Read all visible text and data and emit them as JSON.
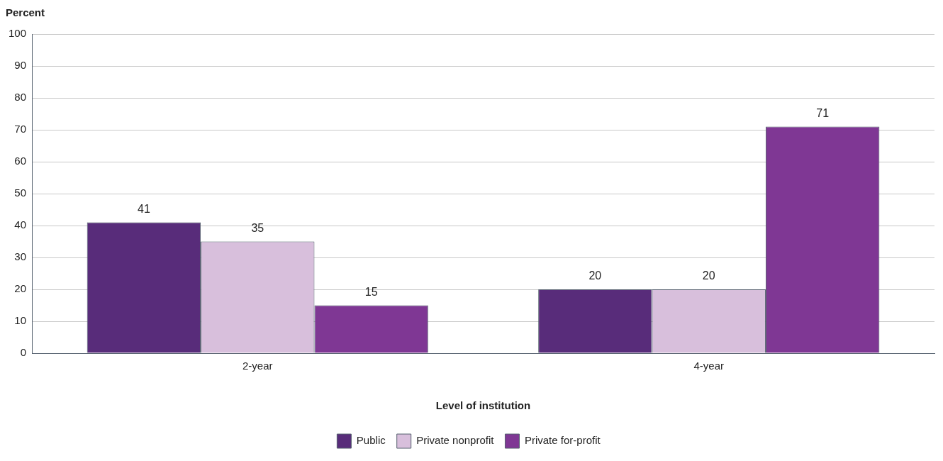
{
  "chart_data": {
    "type": "bar",
    "xlabel": "Level of institution",
    "ylabel": "Percent",
    "categories": [
      "2-year",
      "4-year"
    ],
    "series": [
      {
        "name": "Public",
        "color": "#582c7a",
        "values": [
          41,
          20
        ]
      },
      {
        "name": "Private nonprofit",
        "color": "#d8bfdc",
        "values": [
          35,
          20
        ]
      },
      {
        "name": "Private for-profit",
        "color": "#7f3794",
        "values": [
          15,
          71
        ]
      }
    ],
    "ylim": [
      0,
      100
    ],
    "yticks": [
      0,
      10,
      20,
      30,
      40,
      50,
      60,
      70,
      80,
      90,
      100
    ],
    "grid": "y",
    "legend": "bottom",
    "data_labels": true
  }
}
